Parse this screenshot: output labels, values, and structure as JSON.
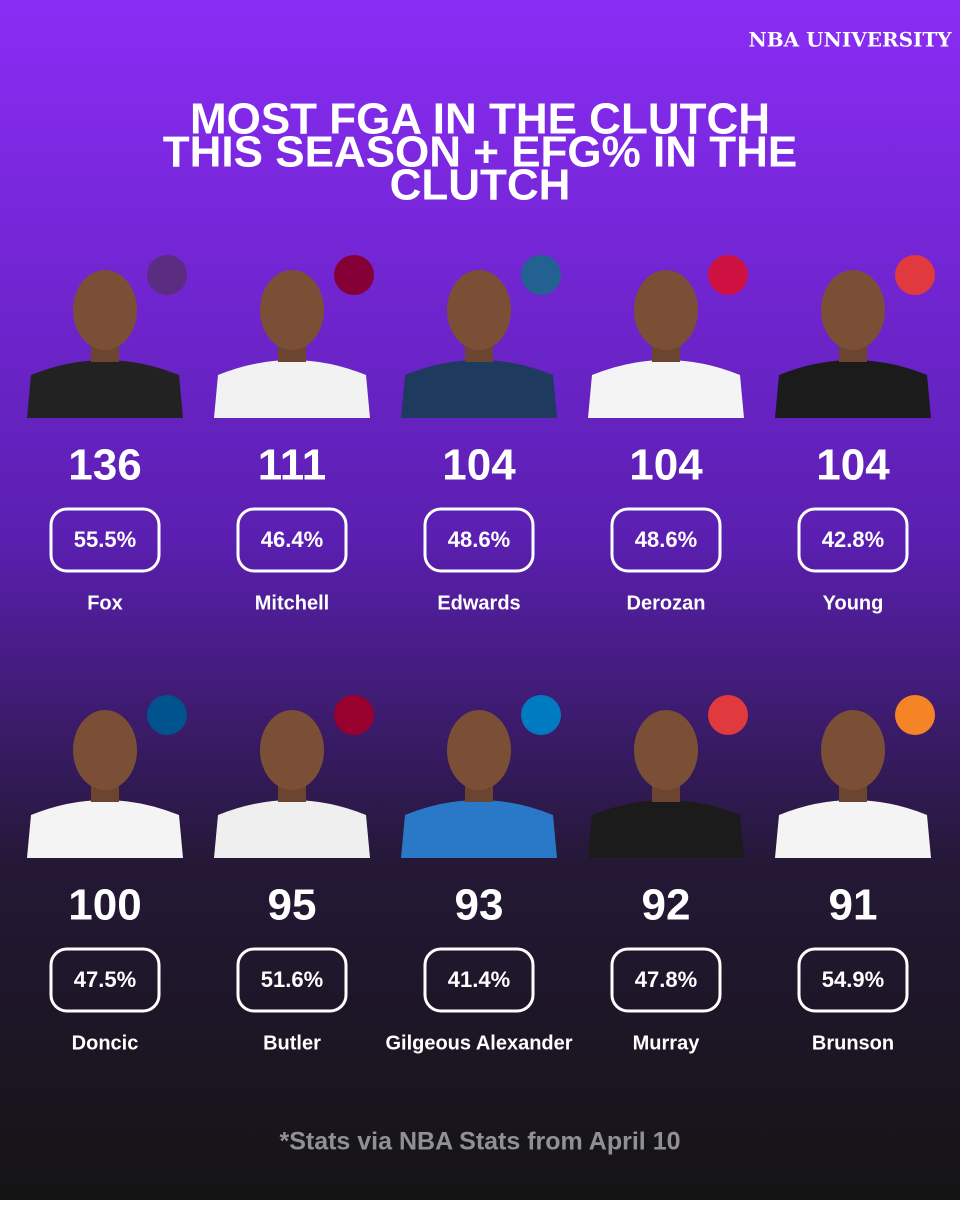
{
  "brand": "NBA UNIVERSITY",
  "title": [
    "MOST FGA IN THE CLUTCH",
    "THIS SEASON + EFG% IN THE",
    "CLUTCH"
  ],
  "players": [
    {
      "name": "Fox",
      "fga": 136,
      "efg": "55.5%"
    },
    {
      "name": "Mitchell",
      "fga": 111,
      "efg": "46.4%"
    },
    {
      "name": "Edwards",
      "fga": 104,
      "efg": "48.6%"
    },
    {
      "name": "Derozan",
      "fga": 104,
      "efg": "48.6%"
    },
    {
      "name": "Young",
      "fga": 104,
      "efg": "42.8%"
    },
    {
      "name": "Doncic",
      "fga": 100,
      "efg": "47.5%"
    },
    {
      "name": "Butler",
      "fga": 95,
      "efg": "51.6%"
    },
    {
      "name": "Gilgeous Alexander",
      "fga": 93,
      "efg": "41.4%"
    },
    {
      "name": "Murray",
      "fga": 92,
      "efg": "47.8%"
    },
    {
      "name": "Brunson",
      "fga": 91,
      "efg": "54.9%"
    }
  ],
  "footnote": "*Stats via NBA Stats from April 10"
}
